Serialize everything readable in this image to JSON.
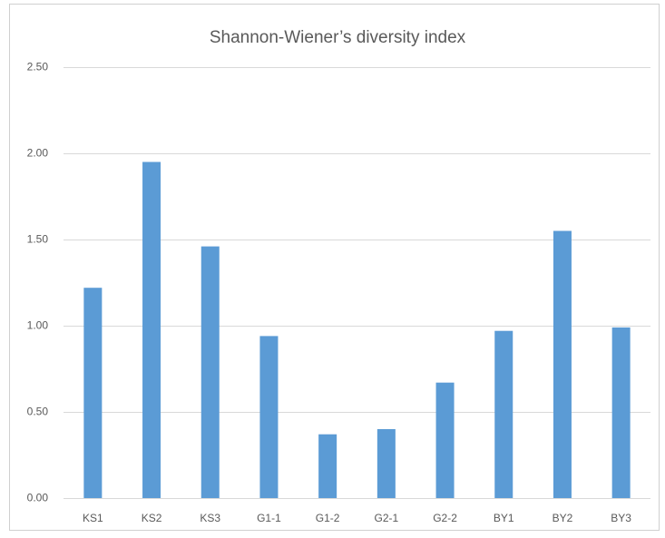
{
  "chart_data": {
    "type": "bar",
    "title": "Shannon-Wiener’s diversity index",
    "categories": [
      "KS1",
      "KS2",
      "KS3",
      "G1-1",
      "G1-2",
      "G2-1",
      "G2-2",
      "BY1",
      "BY2",
      "BY3"
    ],
    "values": [
      1.22,
      1.95,
      1.46,
      0.94,
      0.37,
      0.4,
      0.67,
      0.97,
      1.55,
      0.99
    ],
    "color": "#5b9bd5",
    "ylim": [
      0,
      2.5
    ],
    "yticks": [
      {
        "value": 0,
        "label": "0.00"
      },
      {
        "value": 0.5,
        "label": "0.50"
      },
      {
        "value": 1,
        "label": "1.00"
      },
      {
        "value": 1.5,
        "label": "1.50"
      },
      {
        "value": 2,
        "label": "2.00"
      },
      {
        "value": 2.5,
        "label": "2.50"
      }
    ],
    "grid": true
  }
}
